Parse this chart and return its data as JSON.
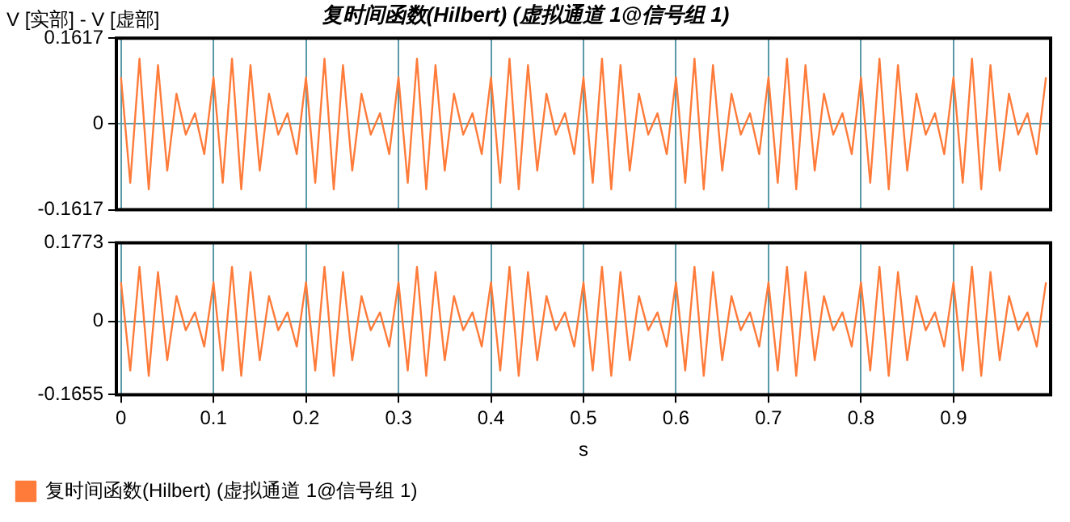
{
  "chart_data": [
    {
      "type": "line",
      "title": "复时间函数(Hilbert) (虚拟通道 1@信号组 1)",
      "ylabel": "V [实部] - V [虚部]",
      "x": [
        0,
        0.01,
        0.02,
        0.03,
        0.04,
        0.05,
        0.06,
        0.07,
        0.08,
        0.09,
        0.1,
        0.11,
        0.12,
        0.13,
        0.14,
        0.15,
        0.16,
        0.17,
        0.18,
        0.19,
        0.2,
        0.21,
        0.22,
        0.23,
        0.24,
        0.25,
        0.26,
        0.27,
        0.28,
        0.29,
        0.3,
        0.31,
        0.32,
        0.33,
        0.34,
        0.35,
        0.36,
        0.37,
        0.38,
        0.39,
        0.4,
        0.41,
        0.42,
        0.43,
        0.44,
        0.45,
        0.46,
        0.47,
        0.48,
        0.49,
        0.5,
        0.51,
        0.52,
        0.53,
        0.54,
        0.55,
        0.56,
        0.57,
        0.58,
        0.59,
        0.6,
        0.61,
        0.62,
        0.63,
        0.64,
        0.65,
        0.66,
        0.67,
        0.68,
        0.69,
        0.7,
        0.71,
        0.72,
        0.73,
        0.74,
        0.75,
        0.76,
        0.77,
        0.78,
        0.79,
        0.8,
        0.81,
        0.82,
        0.83,
        0.84,
        0.85,
        0.86,
        0.87,
        0.88,
        0.89,
        0.9,
        0.91,
        0.92,
        0.93,
        0.94,
        0.95,
        0.96,
        0.97,
        0.98,
        0.99,
        1
      ],
      "series": [
        {
          "color": "#ff7b3a",
          "values": [
            0.088,
            -0.111,
            0.123,
            -0.123,
            0.111,
            -0.088,
            0.057,
            -0.02,
            0.02,
            -0.057,
            0.088,
            -0.111,
            0.123,
            -0.123,
            0.111,
            -0.088,
            0.057,
            -0.02,
            0.02,
            -0.057,
            0.088,
            -0.111,
            0.123,
            -0.123,
            0.111,
            -0.088,
            0.057,
            -0.02,
            0.02,
            -0.057,
            0.088,
            -0.111,
            0.123,
            -0.123,
            0.111,
            -0.088,
            0.057,
            -0.02,
            0.02,
            -0.057,
            0.088,
            -0.111,
            0.123,
            -0.123,
            0.111,
            -0.088,
            0.057,
            -0.02,
            0.02,
            -0.057,
            0.088,
            -0.111,
            0.123,
            -0.123,
            0.111,
            -0.088,
            0.057,
            -0.02,
            0.02,
            -0.057,
            0.088,
            -0.111,
            0.123,
            -0.123,
            0.111,
            -0.088,
            0.057,
            -0.02,
            0.02,
            -0.057,
            0.088,
            -0.111,
            0.123,
            -0.123,
            0.111,
            -0.088,
            0.057,
            -0.02,
            0.02,
            -0.057,
            0.088,
            -0.111,
            0.123,
            -0.123,
            0.111,
            -0.088,
            0.057,
            -0.02,
            0.02,
            -0.057,
            0.088,
            -0.111,
            0.123,
            -0.123,
            0.111,
            -0.088,
            0.057,
            -0.02,
            0.02,
            -0.057,
            0.088
          ]
        }
      ],
      "xlim": [
        -0.005,
        1.005
      ],
      "xticks": [
        0,
        0.1,
        0.2,
        0.3,
        0.4,
        0.5,
        0.6,
        0.7,
        0.8,
        0.9
      ],
      "ylim": [
        -0.1617,
        0.1617
      ],
      "yticks": [
        -0.1617,
        0,
        0.1617
      ],
      "grid": true,
      "tick_labels": "y",
      "legend": false
    },
    {
      "type": "line",
      "xlabel": "s",
      "x": [
        0,
        0.01,
        0.02,
        0.03,
        0.04,
        0.05,
        0.06,
        0.07,
        0.08,
        0.09,
        0.1,
        0.11,
        0.12,
        0.13,
        0.14,
        0.15,
        0.16,
        0.17,
        0.18,
        0.19,
        0.2,
        0.21,
        0.22,
        0.23,
        0.24,
        0.25,
        0.26,
        0.27,
        0.28,
        0.29,
        0.3,
        0.31,
        0.32,
        0.33,
        0.34,
        0.35,
        0.36,
        0.37,
        0.38,
        0.39,
        0.4,
        0.41,
        0.42,
        0.43,
        0.44,
        0.45,
        0.46,
        0.47,
        0.48,
        0.49,
        0.5,
        0.51,
        0.52,
        0.53,
        0.54,
        0.55,
        0.56,
        0.57,
        0.58,
        0.59,
        0.6,
        0.61,
        0.62,
        0.63,
        0.64,
        0.65,
        0.66,
        0.67,
        0.68,
        0.69,
        0.7,
        0.71,
        0.72,
        0.73,
        0.74,
        0.75,
        0.76,
        0.77,
        0.78,
        0.79,
        0.8,
        0.81,
        0.82,
        0.83,
        0.84,
        0.85,
        0.86,
        0.87,
        0.88,
        0.89,
        0.9,
        0.91,
        0.92,
        0.93,
        0.94,
        0.95,
        0.96,
        0.97,
        0.98,
        0.99,
        1
      ],
      "series": [
        {
          "name": "复时间函数(Hilbert) (虚拟通道 1@信号组 1)",
          "color": "#ff7b3a",
          "values": [
            0.088,
            -0.111,
            0.123,
            -0.123,
            0.111,
            -0.088,
            0.057,
            -0.02,
            0.02,
            -0.057,
            0.088,
            -0.111,
            0.123,
            -0.123,
            0.111,
            -0.088,
            0.057,
            -0.02,
            0.02,
            -0.057,
            0.088,
            -0.111,
            0.123,
            -0.123,
            0.111,
            -0.088,
            0.057,
            -0.02,
            0.02,
            -0.057,
            0.088,
            -0.111,
            0.123,
            -0.123,
            0.111,
            -0.088,
            0.057,
            -0.02,
            0.02,
            -0.057,
            0.088,
            -0.111,
            0.123,
            -0.123,
            0.111,
            -0.088,
            0.057,
            -0.02,
            0.02,
            -0.057,
            0.088,
            -0.111,
            0.123,
            -0.123,
            0.111,
            -0.088,
            0.057,
            -0.02,
            0.02,
            -0.057,
            0.088,
            -0.111,
            0.123,
            -0.123,
            0.111,
            -0.088,
            0.057,
            -0.02,
            0.02,
            -0.057,
            0.088,
            -0.111,
            0.123,
            -0.123,
            0.111,
            -0.088,
            0.057,
            -0.02,
            0.02,
            -0.057,
            0.088,
            -0.111,
            0.123,
            -0.123,
            0.111,
            -0.088,
            0.057,
            -0.02,
            0.02,
            -0.057,
            0.088,
            -0.111,
            0.123,
            -0.123,
            0.111,
            -0.088,
            0.057,
            -0.02,
            0.02,
            -0.057,
            0.088
          ]
        }
      ],
      "xlim": [
        -0.005,
        1.005
      ],
      "xticks": [
        0,
        0.1,
        0.2,
        0.3,
        0.4,
        0.5,
        0.6,
        0.7,
        0.8,
        0.9
      ],
      "ylim": [
        -0.1655,
        0.1773
      ],
      "yticks": [
        -0.1655,
        0,
        0.1773
      ],
      "grid": true,
      "legend": "bottom left"
    }
  ]
}
